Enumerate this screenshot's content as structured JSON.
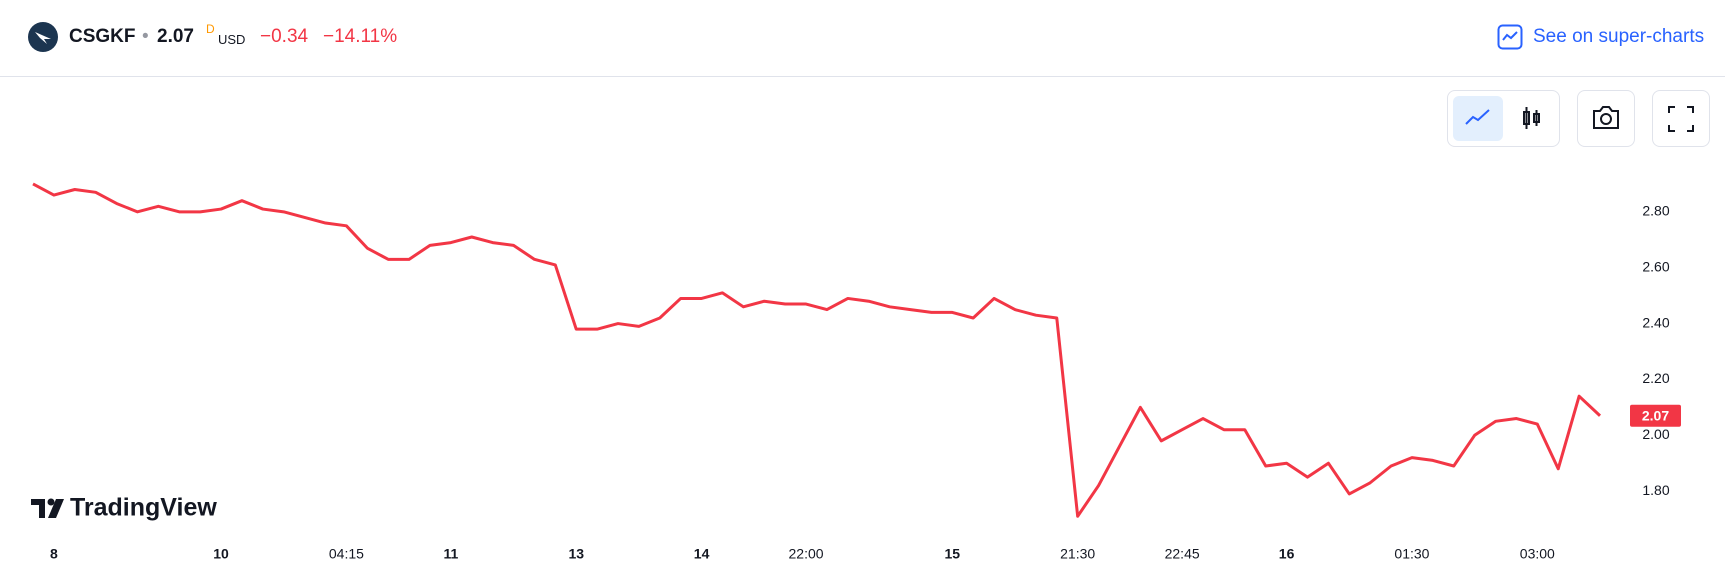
{
  "header": {
    "symbol": "CSGKF",
    "price": 2.07,
    "interval": "D",
    "currency": "USD",
    "change": "−0.34",
    "change_percent": "−14.11%",
    "link": "See on super-charts"
  },
  "branding": "TradingView",
  "chart_data": {
    "type": "line",
    "categories": [
      null,
      "8",
      null,
      null,
      null,
      null,
      null,
      null,
      null,
      "10",
      null,
      null,
      null,
      null,
      null,
      "04:15",
      null,
      null,
      null,
      null,
      "11",
      null,
      null,
      null,
      null,
      null,
      "13",
      null,
      null,
      null,
      null,
      null,
      "14",
      null,
      null,
      null,
      null,
      "22:00",
      null,
      null,
      null,
      null,
      null,
      null,
      "15",
      null,
      null,
      null,
      null,
      null,
      "21:30",
      null,
      null,
      null,
      null,
      "22:45",
      null,
      null,
      null,
      null,
      "16",
      null,
      null,
      null,
      null,
      null,
      "01:30",
      null,
      null,
      null,
      null,
      null,
      "03:00",
      null,
      null,
      null
    ],
    "series": [
      {
        "color": "#f23645",
        "values": [
          2.9,
          2.86,
          2.88,
          2.87,
          2.83,
          2.8,
          2.82,
          2.8,
          2.8,
          2.81,
          2.84,
          2.81,
          2.8,
          2.78,
          2.76,
          2.75,
          2.67,
          2.63,
          2.63,
          2.68,
          2.69,
          2.71,
          2.69,
          2.68,
          2.63,
          2.61,
          2.38,
          2.38,
          2.4,
          2.39,
          2.42,
          2.49,
          2.49,
          2.51,
          2.46,
          2.48,
          2.47,
          2.47,
          2.45,
          2.49,
          2.48,
          2.46,
          2.45,
          2.44,
          2.44,
          2.42,
          2.49,
          2.45,
          2.43,
          2.42,
          1.71,
          1.82,
          1.96,
          2.1,
          1.98,
          2.02,
          2.06,
          2.02,
          2.02,
          1.89,
          1.9,
          1.85,
          1.9,
          1.79,
          1.83,
          1.89,
          1.92,
          1.91,
          1.89,
          2.0,
          2.05,
          2.06,
          2.04,
          1.88,
          2.14,
          2.07
        ]
      }
    ],
    "ylim": [
      1.6,
      3.0
    ],
    "yticks": [
      {
        "value": 1.8,
        "label": "1.80"
      },
      {
        "value": 2.0,
        "label": "2.00"
      },
      {
        "value": 2.2,
        "label": "2.20"
      },
      {
        "value": 2.4,
        "label": "2.40"
      },
      {
        "value": 2.6,
        "label": "2.60"
      },
      {
        "value": 2.8,
        "label": "2.80"
      }
    ],
    "grid": false
  }
}
